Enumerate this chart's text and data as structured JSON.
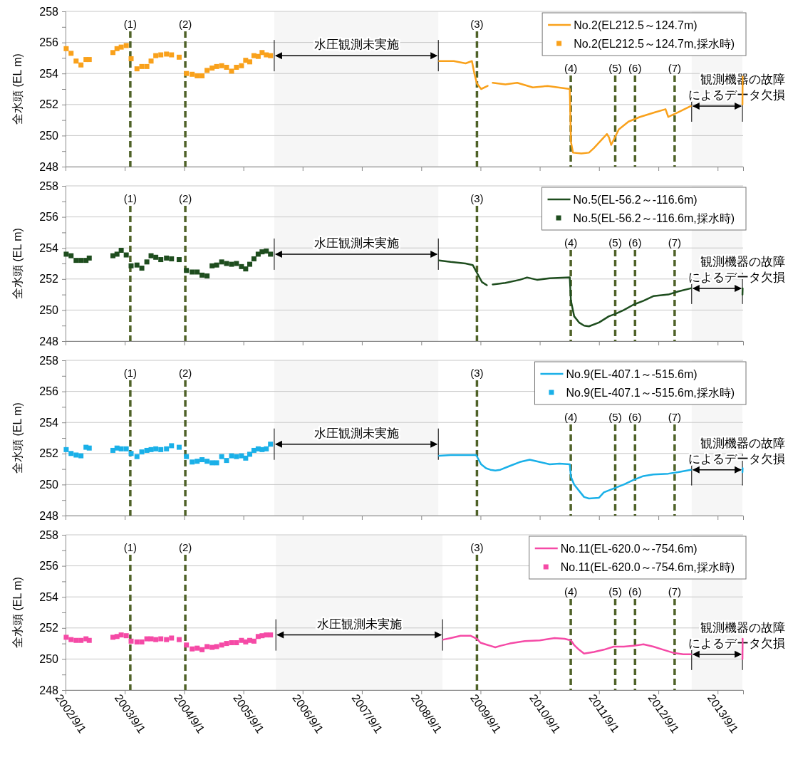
{
  "chart_data": [
    {
      "type": "line",
      "ylabel": "全水頭 (EL m)",
      "grid": "y",
      "legend": "top right",
      "tick_labels": "y",
      "xlim": [
        "2002-09-01",
        "2014-02-05"
      ],
      "xticks": [
        {
          "value": "2002-09-01",
          "label": null
        },
        {
          "value": "2003-09-01",
          "label": null
        },
        {
          "value": "2004-09-01",
          "label": null
        },
        {
          "value": "2005-09-01",
          "label": null
        },
        {
          "value": "2006-09-01",
          "label": null
        },
        {
          "value": "2007-09-01",
          "label": null
        },
        {
          "value": "2008-09-01",
          "label": null
        },
        {
          "value": "2009-09-01",
          "label": null
        },
        {
          "value": "2010-09-01",
          "label": null
        },
        {
          "value": "2011-09-01",
          "label": null
        },
        {
          "value": "2012-09-01",
          "label": null
        },
        {
          "value": "2013-09-01",
          "label": null
        }
      ],
      "ylim": [
        248,
        258
      ],
      "yticks": [
        248,
        {
          "value": 249,
          "label": null
        },
        250,
        {
          "value": 251,
          "label": null
        },
        252,
        {
          "value": 253,
          "label": null
        },
        254,
        {
          "value": 255,
          "label": null
        },
        256,
        {
          "value": 257,
          "label": null
        },
        258
      ],
      "x": [
        "2002-09-05",
        "2002-10-05",
        "2002-11-05",
        "2002-12-05",
        "2003-01-05",
        "2003-01-25",
        "2003-06-20",
        "2003-07-15",
        "2003-08-10",
        "2003-09-10",
        "2003-10-10",
        "2003-11-15",
        "2003-12-15",
        "2004-01-15",
        "2004-02-10",
        "2004-03-10",
        "2004-04-10",
        "2004-05-15",
        "2004-06-15",
        "2004-08-01",
        "2004-09-15",
        "2004-10-20",
        "2004-11-20",
        "2004-12-20",
        "2005-01-20",
        "2005-02-20",
        "2005-03-20",
        "2005-04-20",
        "2005-05-20",
        "2005-06-20",
        "2005-07-20",
        "2005-08-20",
        "2005-09-15",
        "2005-10-10",
        "2005-11-05",
        "2005-12-01",
        "2005-12-25",
        "2006-01-20",
        "2006-02-15"
      ],
      "series": [
        {
          "type": "line",
          "name": "No.2(EL212.5～124.7m)",
          "color": "#f9a11b",
          "x": [
            "2008-12-20",
            "2009-03-20",
            "2009-06-01",
            "2009-07-10",
            "2009-07-25",
            "2009-08-10",
            "2009-09-05",
            "2009-10-15",
            "2009-11-01",
            "2009-11-15",
            "2010-02-01",
            "2010-04-15",
            "2010-07-20",
            "2010-10-20",
            "2011-03-05",
            "2011-03-12",
            "2011-03-25",
            "2011-05-15",
            "2011-07-01",
            "2011-08-01",
            "2011-10-20",
            "2011-11-01",
            "2011-11-15",
            "2012-01-01",
            "2012-03-01",
            "2012-05-10",
            "2012-08-10",
            "2012-10-15",
            "2012-11-01",
            "2013-01-01",
            "2013-03-20",
            "2013-08-01",
            "2014-02-01",
            "2014-02-02"
          ],
          "values": [
            254.8,
            254.8,
            254.65,
            254.8,
            254.0,
            253.35,
            253.0,
            253.2,
            null,
            253.4,
            253.3,
            253.4,
            253.1,
            253.2,
            253.0,
            249.6,
            248.9,
            248.85,
            248.9,
            249.2,
            250.1,
            249.9,
            249.4,
            250.4,
            250.9,
            251.2,
            251.5,
            251.7,
            251.2,
            251.5,
            251.9,
            null,
            252.0,
            253.8
          ]
        },
        {
          "type": "scatter",
          "name": "No.2(EL212.5～124.7m,採水時)",
          "color": "#f9a11b",
          "marker": "square",
          "values": [
            255.6,
            255.3,
            254.8,
            254.55,
            254.9,
            254.9,
            255.35,
            255.6,
            255.7,
            255.8,
            254.95,
            254.3,
            254.45,
            254.45,
            254.8,
            255.15,
            255.2,
            255.25,
            255.2,
            255.05,
            254.0,
            253.95,
            253.85,
            253.85,
            254.2,
            254.35,
            254.45,
            254.5,
            254.4,
            254.15,
            254.4,
            254.5,
            254.85,
            254.75,
            255.15,
            255.1,
            255.35,
            255.2,
            255.15
          ]
        }
      ],
      "ref_lines": [
        {
          "axis": "x",
          "value": "2003-10-05",
          "label": "(1)",
          "color": "#4f6228",
          "line_style": "dashed"
        },
        {
          "axis": "x",
          "value": "2004-09-08",
          "label": "(2)",
          "color": "#4f6228",
          "line_style": "dashed"
        },
        {
          "axis": "x",
          "value": "2009-08-10",
          "label": "(3)",
          "color": "#4f6228",
          "line_style": "dashed"
        },
        {
          "axis": "x",
          "value": "2011-03-11",
          "label": "(4)",
          "color": "#4f6228",
          "line_style": "dashed"
        },
        {
          "axis": "x",
          "value": "2011-12-10",
          "label": "(5)",
          "color": "#4f6228",
          "line_style": "dashed"
        },
        {
          "axis": "x",
          "value": "2012-04-10",
          "label": "(6)",
          "color": "#4f6228",
          "line_style": "dashed"
        },
        {
          "axis": "x",
          "value": "2012-12-10",
          "label": "(7)",
          "color": "#4f6228",
          "line_style": "dashed"
        }
      ],
      "bands": [
        {
          "axis": "x",
          "from": "2006-03-10",
          "to": "2008-12-15",
          "label": "水圧観測未実施"
        },
        {
          "axis": "x",
          "from": "2013-03-25",
          "to": "2014-02-01",
          "label": "観測機器の故障によるデータ欠損"
        }
      ]
    },
    {
      "type": "line",
      "ylabel": "全水頭 (EL m)",
      "grid": "y",
      "legend": "top right",
      "tick_labels": "y",
      "xlim": [
        "2002-09-01",
        "2014-02-05"
      ],
      "xticks": [
        {
          "value": "2002-09-01",
          "label": null
        },
        {
          "value": "2003-09-01",
          "label": null
        },
        {
          "value": "2004-09-01",
          "label": null
        },
        {
          "value": "2005-09-01",
          "label": null
        },
        {
          "value": "2006-09-01",
          "label": null
        },
        {
          "value": "2007-09-01",
          "label": null
        },
        {
          "value": "2008-09-01",
          "label": null
        },
        {
          "value": "2009-09-01",
          "label": null
        },
        {
          "value": "2010-09-01",
          "label": null
        },
        {
          "value": "2011-09-01",
          "label": null
        },
        {
          "value": "2012-09-01",
          "label": null
        },
        {
          "value": "2013-09-01",
          "label": null
        }
      ],
      "ylim": [
        248,
        258
      ],
      "yticks": [
        248,
        {
          "value": 249,
          "label": null
        },
        250,
        {
          "value": 251,
          "label": null
        },
        252,
        {
          "value": 253,
          "label": null
        },
        254,
        {
          "value": 255,
          "label": null
        },
        256,
        {
          "value": 257,
          "label": null
        },
        258
      ],
      "x": [
        "2002-09-05",
        "2002-10-05",
        "2002-11-05",
        "2002-12-05",
        "2003-01-05",
        "2003-01-25",
        "2003-06-20",
        "2003-07-15",
        "2003-08-10",
        "2003-09-10",
        "2003-10-10",
        "2003-11-15",
        "2003-12-15",
        "2004-01-15",
        "2004-02-10",
        "2004-03-10",
        "2004-04-10",
        "2004-05-15",
        "2004-06-15",
        "2004-08-01",
        "2004-09-15",
        "2004-10-20",
        "2004-11-20",
        "2004-12-20",
        "2005-01-20",
        "2005-02-20",
        "2005-03-20",
        "2005-04-20",
        "2005-05-20",
        "2005-06-20",
        "2005-07-20",
        "2005-08-20",
        "2005-09-15",
        "2005-10-10",
        "2005-11-05",
        "2005-12-01",
        "2005-12-25",
        "2006-01-20",
        "2006-02-15"
      ],
      "series": [
        {
          "type": "line",
          "name": "No.5(EL-56.2～-116.6m)",
          "color": "#1e4d1e",
          "x": [
            "2008-12-20",
            "2009-03-01",
            "2009-06-01",
            "2009-07-15",
            "2009-08-15",
            "2009-09-10",
            "2009-10-10",
            "2009-10-25",
            "2009-11-15",
            "2010-02-01",
            "2010-05-01",
            "2010-06-15",
            "2010-08-15",
            "2010-11-01",
            "2011-03-05",
            "2011-03-12",
            "2011-04-01",
            "2011-05-01",
            "2011-06-01",
            "2011-07-01",
            "2011-09-01",
            "2011-11-01",
            "2011-12-10",
            "2012-02-01",
            "2012-04-01",
            "2012-06-01",
            "2012-08-01",
            "2012-11-01",
            "2013-01-01",
            "2013-03-20",
            "2013-08-01",
            "2014-02-01",
            "2014-02-02"
          ],
          "values": [
            253.2,
            253.1,
            253.0,
            252.9,
            252.3,
            251.8,
            251.6,
            null,
            251.65,
            251.75,
            251.95,
            252.1,
            251.95,
            252.05,
            252.1,
            250.6,
            249.6,
            249.2,
            249.0,
            248.95,
            249.2,
            249.6,
            249.75,
            250.0,
            250.35,
            250.6,
            250.9,
            251.0,
            251.2,
            251.4,
            null,
            251.0,
            251.4
          ]
        },
        {
          "type": "scatter",
          "name": "No.5(EL-56.2～-116.6m,採水時)",
          "color": "#1e4d1e",
          "marker": "square",
          "values": [
            253.6,
            253.5,
            253.2,
            253.2,
            253.2,
            253.35,
            253.5,
            253.6,
            253.85,
            253.55,
            252.85,
            252.9,
            252.7,
            253.1,
            253.5,
            253.4,
            253.25,
            253.35,
            253.3,
            253.25,
            252.55,
            252.45,
            252.45,
            252.25,
            252.2,
            252.85,
            252.9,
            253.1,
            253.0,
            252.95,
            253.0,
            252.8,
            252.65,
            252.95,
            253.3,
            253.6,
            253.75,
            253.8,
            253.6
          ]
        }
      ],
      "ref_lines": [
        {
          "axis": "x",
          "value": "2003-10-05",
          "label": "(1)",
          "color": "#4f6228",
          "line_style": "dashed"
        },
        {
          "axis": "x",
          "value": "2004-09-08",
          "label": "(2)",
          "color": "#4f6228",
          "line_style": "dashed"
        },
        {
          "axis": "x",
          "value": "2009-08-10",
          "label": "(3)",
          "color": "#4f6228",
          "line_style": "dashed"
        },
        {
          "axis": "x",
          "value": "2011-03-11",
          "label": "(4)",
          "color": "#4f6228",
          "line_style": "dashed"
        },
        {
          "axis": "x",
          "value": "2011-12-10",
          "label": "(5)",
          "color": "#4f6228",
          "line_style": "dashed"
        },
        {
          "axis": "x",
          "value": "2012-04-10",
          "label": "(6)",
          "color": "#4f6228",
          "line_style": "dashed"
        },
        {
          "axis": "x",
          "value": "2012-12-10",
          "label": "(7)",
          "color": "#4f6228",
          "line_style": "dashed"
        }
      ],
      "bands": [
        {
          "axis": "x",
          "from": "2006-03-10",
          "to": "2008-12-15",
          "label": "水圧観測未実施"
        },
        {
          "axis": "x",
          "from": "2013-03-25",
          "to": "2014-02-01",
          "label": "観測機器の故障によるデータ欠損"
        }
      ]
    },
    {
      "type": "line",
      "ylabel": "全水頭 (EL m)",
      "grid": "y",
      "legend": "top right",
      "tick_labels": "y",
      "xlim": [
        "2002-09-01",
        "2014-02-05"
      ],
      "xticks": [
        {
          "value": "2002-09-01",
          "label": null
        },
        {
          "value": "2003-09-01",
          "label": null
        },
        {
          "value": "2004-09-01",
          "label": null
        },
        {
          "value": "2005-09-01",
          "label": null
        },
        {
          "value": "2006-09-01",
          "label": null
        },
        {
          "value": "2007-09-01",
          "label": null
        },
        {
          "value": "2008-09-01",
          "label": null
        },
        {
          "value": "2009-09-01",
          "label": null
        },
        {
          "value": "2010-09-01",
          "label": null
        },
        {
          "value": "2011-09-01",
          "label": null
        },
        {
          "value": "2012-09-01",
          "label": null
        },
        {
          "value": "2013-09-01",
          "label": null
        }
      ],
      "ylim": [
        248,
        258
      ],
      "yticks": [
        248,
        {
          "value": 249,
          "label": null
        },
        250,
        {
          "value": 251,
          "label": null
        },
        252,
        {
          "value": 253,
          "label": null
        },
        254,
        {
          "value": 255,
          "label": null
        },
        256,
        {
          "value": 257,
          "label": null
        },
        258
      ],
      "x": [
        "2002-09-05",
        "2002-10-05",
        "2002-11-05",
        "2002-12-05",
        "2003-01-05",
        "2003-01-25",
        "2003-06-20",
        "2003-07-15",
        "2003-08-10",
        "2003-09-10",
        "2003-10-10",
        "2003-11-15",
        "2003-12-15",
        "2004-01-15",
        "2004-02-10",
        "2004-03-10",
        "2004-04-10",
        "2004-05-15",
        "2004-06-15",
        "2004-08-01",
        "2004-09-15",
        "2004-10-20",
        "2004-11-20",
        "2004-12-20",
        "2005-01-20",
        "2005-02-20",
        "2005-03-20",
        "2005-04-20",
        "2005-05-20",
        "2005-06-20",
        "2005-07-20",
        "2005-08-20",
        "2005-09-15",
        "2005-10-10",
        "2005-11-05",
        "2005-12-01",
        "2005-12-25",
        "2006-01-20",
        "2006-02-15"
      ],
      "series": [
        {
          "type": "line",
          "name": "No.9(EL-407.1～-515.6m)",
          "color": "#1ab0e8",
          "x": [
            "2008-12-20",
            "2009-03-01",
            "2009-06-01",
            "2009-08-05",
            "2009-09-05",
            "2009-10-05",
            "2009-11-01",
            "2009-12-01",
            "2010-01-01",
            "2010-03-01",
            "2010-05-01",
            "2010-07-01",
            "2010-09-01",
            "2010-11-01",
            "2011-01-01",
            "2011-03-05",
            "2011-03-12",
            "2011-04-01",
            "2011-05-01",
            "2011-06-01",
            "2011-07-01",
            "2011-09-01",
            "2011-10-01",
            "2011-12-01",
            "2012-02-01",
            "2012-04-01",
            "2012-06-01",
            "2012-08-01",
            "2012-11-01",
            "2013-01-01",
            "2013-03-20",
            "2013-08-01",
            "2014-02-01",
            "2014-02-02"
          ],
          "values": [
            251.85,
            251.9,
            251.9,
            251.9,
            251.3,
            251.05,
            250.95,
            250.9,
            250.95,
            251.2,
            251.45,
            251.6,
            251.45,
            251.3,
            251.35,
            251.3,
            250.5,
            250.0,
            249.6,
            249.2,
            249.1,
            249.15,
            249.5,
            249.75,
            250.0,
            250.3,
            250.55,
            250.65,
            250.7,
            250.8,
            250.95,
            null,
            250.8,
            251.05
          ]
        },
        {
          "type": "scatter",
          "name": "No.9(EL-407.1～-515.6m,採水時)",
          "color": "#1ab0e8",
          "marker": "square",
          "values": [
            252.25,
            252.0,
            251.9,
            251.85,
            252.4,
            252.35,
            252.2,
            252.35,
            252.3,
            252.3,
            252.0,
            251.8,
            252.1,
            252.2,
            252.25,
            252.3,
            252.25,
            252.3,
            252.5,
            252.4,
            251.8,
            251.45,
            251.5,
            251.6,
            251.5,
            251.4,
            251.4,
            251.8,
            251.55,
            251.85,
            251.8,
            251.85,
            251.7,
            251.95,
            252.2,
            252.3,
            252.25,
            252.3,
            252.6
          ]
        }
      ],
      "ref_lines": [
        {
          "axis": "x",
          "value": "2003-10-05",
          "label": "(1)",
          "color": "#4f6228",
          "line_style": "dashed"
        },
        {
          "axis": "x",
          "value": "2004-09-08",
          "label": "(2)",
          "color": "#4f6228",
          "line_style": "dashed"
        },
        {
          "axis": "x",
          "value": "2009-08-10",
          "label": "(3)",
          "color": "#4f6228",
          "line_style": "dashed"
        },
        {
          "axis": "x",
          "value": "2011-03-11",
          "label": "(4)",
          "color": "#4f6228",
          "line_style": "dashed"
        },
        {
          "axis": "x",
          "value": "2011-12-10",
          "label": "(5)",
          "color": "#4f6228",
          "line_style": "dashed"
        },
        {
          "axis": "x",
          "value": "2012-04-10",
          "label": "(6)",
          "color": "#4f6228",
          "line_style": "dashed"
        },
        {
          "axis": "x",
          "value": "2012-12-10",
          "label": "(7)",
          "color": "#4f6228",
          "line_style": "dashed"
        }
      ],
      "bands": [
        {
          "axis": "x",
          "from": "2006-03-10",
          "to": "2008-12-15",
          "label": "水圧観測未実施"
        },
        {
          "axis": "x",
          "from": "2013-03-25",
          "to": "2014-02-01",
          "label": "観測機器の故障によるデータ欠損"
        }
      ]
    },
    {
      "type": "line",
      "ylabel": "全水頭 (EL m)",
      "grid": "y",
      "legend": "top right",
      "xlim": [
        "2002-09-01",
        "2014-02-05"
      ],
      "xticks": [
        {
          "value": "2002-09-01",
          "label": "2002/9/1"
        },
        {
          "value": "2003-09-01",
          "label": "2003/9/1"
        },
        {
          "value": "2004-09-01",
          "label": "2004/9/1"
        },
        {
          "value": "2005-09-01",
          "label": "2005/9/1"
        },
        {
          "value": "2006-09-01",
          "label": "2006/9/1"
        },
        {
          "value": "2007-09-01",
          "label": "2007/9/1"
        },
        {
          "value": "2008-09-01",
          "label": "2008/9/1"
        },
        {
          "value": "2009-09-01",
          "label": "2009/9/1"
        },
        {
          "value": "2010-09-01",
          "label": "2010/9/1"
        },
        {
          "value": "2011-09-01",
          "label": "2011/9/1"
        },
        {
          "value": "2012-09-01",
          "label": "2012/9/1"
        },
        {
          "value": "2013-09-01",
          "label": "2013/9/1"
        }
      ],
      "ylim": [
        248,
        258
      ],
      "yticks": [
        248,
        {
          "value": 249,
          "label": null
        },
        250,
        {
          "value": 251,
          "label": null
        },
        252,
        {
          "value": 253,
          "label": null
        },
        254,
        {
          "value": 255,
          "label": null
        },
        256,
        {
          "value": 257,
          "label": null
        },
        258
      ],
      "x": [
        "2002-09-05",
        "2002-10-05",
        "2002-11-05",
        "2002-12-05",
        "2003-01-05",
        "2003-01-25",
        "2003-06-20",
        "2003-07-15",
        "2003-08-10",
        "2003-09-10",
        "2003-10-10",
        "2003-11-15",
        "2003-12-15",
        "2004-01-15",
        "2004-02-10",
        "2004-03-10",
        "2004-04-10",
        "2004-05-15",
        "2004-06-15",
        "2004-08-01",
        "2004-09-15",
        "2004-10-20",
        "2004-11-20",
        "2004-12-20",
        "2005-01-20",
        "2005-02-20",
        "2005-03-20",
        "2005-04-20",
        "2005-05-20",
        "2005-06-20",
        "2005-07-20",
        "2005-08-20",
        "2005-09-15",
        "2005-10-10",
        "2005-11-05",
        "2005-12-01",
        "2005-12-25",
        "2006-01-20",
        "2006-02-15"
      ],
      "series": [
        {
          "type": "line",
          "name": "No.11(EL-620.0～-754.6m)",
          "color": "#f54aa6",
          "x": [
            "2009-01-15",
            "2009-03-01",
            "2009-05-01",
            "2009-07-01",
            "2009-08-10",
            "2009-09-01",
            "2009-10-01",
            "2009-11-01",
            "2009-12-01",
            "2010-01-01",
            "2010-03-01",
            "2010-06-01",
            "2010-09-01",
            "2010-12-01",
            "2011-02-01",
            "2011-03-12",
            "2011-04-01",
            "2011-05-01",
            "2011-06-01",
            "2011-08-01",
            "2011-10-01",
            "2011-12-01",
            "2012-02-01",
            "2012-04-01",
            "2012-06-01",
            "2012-08-01",
            "2012-10-01",
            "2012-12-01",
            "2013-02-01",
            "2013-03-20",
            "2013-08-01",
            "2014-02-01",
            "2014-02-02"
          ],
          "values": [
            251.25,
            251.35,
            251.5,
            251.5,
            251.3,
            251.05,
            250.95,
            250.85,
            250.75,
            250.85,
            251.0,
            251.15,
            251.2,
            251.35,
            251.3,
            251.2,
            250.9,
            250.6,
            250.35,
            250.45,
            250.6,
            250.8,
            250.8,
            250.85,
            250.95,
            250.8,
            250.6,
            250.4,
            250.3,
            250.3,
            null,
            250.0,
            251.3
          ]
        },
        {
          "type": "scatter",
          "name": "No.11(EL-620.0～-754.6m,採水時)",
          "color": "#f54aa6",
          "marker": "square",
          "values": [
            251.4,
            251.25,
            251.2,
            251.2,
            251.3,
            251.2,
            251.4,
            251.45,
            251.55,
            251.5,
            251.15,
            251.1,
            251.1,
            251.3,
            251.3,
            251.25,
            251.3,
            251.25,
            251.35,
            251.25,
            250.9,
            250.65,
            250.7,
            250.6,
            250.8,
            250.75,
            250.8,
            250.9,
            251.0,
            251.05,
            251.05,
            251.2,
            251.1,
            251.2,
            251.15,
            251.45,
            251.5,
            251.55,
            251.55
          ]
        }
      ],
      "ref_lines": [
        {
          "axis": "x",
          "value": "2003-10-05",
          "label": "(1)",
          "color": "#4f6228",
          "line_style": "dashed"
        },
        {
          "axis": "x",
          "value": "2004-09-08",
          "label": "(2)",
          "color": "#4f6228",
          "line_style": "dashed"
        },
        {
          "axis": "x",
          "value": "2009-08-10",
          "label": "(3)",
          "color": "#4f6228",
          "line_style": "dashed"
        },
        {
          "axis": "x",
          "value": "2011-03-11",
          "label": "(4)",
          "color": "#4f6228",
          "line_style": "dashed"
        },
        {
          "axis": "x",
          "value": "2011-12-10",
          "label": "(5)",
          "color": "#4f6228",
          "line_style": "dashed"
        },
        {
          "axis": "x",
          "value": "2012-04-10",
          "label": "(6)",
          "color": "#4f6228",
          "line_style": "dashed"
        },
        {
          "axis": "x",
          "value": "2012-12-10",
          "label": "(7)",
          "color": "#4f6228",
          "line_style": "dashed"
        }
      ],
      "bands": [
        {
          "axis": "x",
          "from": "2006-03-20",
          "to": "2009-01-10",
          "label": "水圧観測未実施"
        },
        {
          "axis": "x",
          "from": "2013-03-25",
          "to": "2014-02-01",
          "label": "観測機器の故障によるデータ欠損"
        }
      ]
    }
  ]
}
